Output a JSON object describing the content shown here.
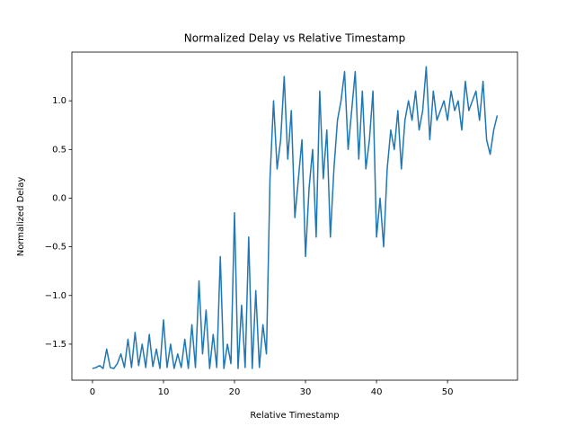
{
  "chart_data": {
    "type": "line",
    "title": "Normalized Delay vs Relative Timestamp",
    "x_label": "Relative Timestamp",
    "y_label": "Normalized Delay",
    "xlim": [
      -2.9,
      59.85
    ],
    "ylim": [
      -1.87,
      1.5
    ],
    "xticks": [
      0,
      10,
      20,
      30,
      40,
      50
    ],
    "yticks": [
      {
        "value": -1.5,
        "label": "−1.5"
      },
      {
        "value": -1.0,
        "label": "−1.0"
      },
      {
        "value": -0.5,
        "label": "−0.5"
      },
      {
        "value": 0,
        "label": "0.0"
      },
      0.5,
      {
        "value": 1.0,
        "label": "1.0"
      }
    ],
    "grid": false,
    "x": [
      0,
      0.5,
      1,
      1.5,
      2,
      2.5,
      3,
      3.5,
      4,
      4.5,
      5,
      5.5,
      6,
      6.5,
      7,
      7.5,
      8,
      8.5,
      9,
      9.5,
      10,
      10.5,
      11,
      11.5,
      12,
      12.5,
      13,
      13.5,
      14,
      14.5,
      15,
      15.5,
      16,
      16.5,
      17,
      17.5,
      18,
      18.5,
      19,
      19.5,
      20,
      20.5,
      21,
      21.5,
      22,
      22.5,
      23,
      23.5,
      24,
      24.5,
      25,
      25.5,
      26,
      26.5,
      27,
      27.5,
      28,
      28.5,
      29,
      29.5,
      30,
      30.5,
      31,
      31.5,
      32,
      32.5,
      33,
      33.5,
      34,
      34.5,
      35,
      35.5,
      36,
      36.5,
      37,
      37.5,
      38,
      38.5,
      39,
      39.5,
      40,
      40.5,
      41,
      41.5,
      42,
      42.5,
      43,
      43.5,
      44,
      44.5,
      45,
      45.5,
      46,
      46.5,
      47,
      47.5,
      48,
      48.5,
      49,
      49.5,
      50,
      50.5,
      51,
      51.5,
      52,
      52.5,
      53,
      53.5,
      54,
      54.5,
      55,
      55.5,
      56,
      56.5,
      57
    ],
    "series": [
      {
        "color": "#1f77b4",
        "values": [
          -1.75,
          -1.74,
          -1.72,
          -1.75,
          -1.55,
          -1.74,
          -1.75,
          -1.7,
          -1.6,
          -1.74,
          -1.45,
          -1.74,
          -1.38,
          -1.72,
          -1.5,
          -1.74,
          -1.4,
          -1.73,
          -1.55,
          -1.75,
          -1.25,
          -1.74,
          -1.5,
          -1.75,
          -1.6,
          -1.74,
          -1.45,
          -1.75,
          -1.3,
          -1.74,
          -0.85,
          -1.6,
          -1.15,
          -1.75,
          -1.4,
          -1.74,
          -0.6,
          -1.75,
          -1.5,
          -1.7,
          -0.15,
          -1.75,
          -1.1,
          -1.74,
          -0.4,
          -1.75,
          -0.95,
          -1.74,
          -1.3,
          -1.6,
          0.2,
          1.0,
          0.3,
          0.6,
          1.25,
          0.4,
          0.9,
          -0.2,
          0.2,
          0.6,
          -0.6,
          0.1,
          0.5,
          -0.4,
          1.1,
          0.2,
          0.7,
          -0.4,
          0.3,
          0.8,
          1.0,
          1.3,
          0.5,
          0.9,
          1.3,
          0.4,
          1.1,
          0.3,
          0.6,
          1.1,
          -0.4,
          0.0,
          -0.5,
          0.3,
          0.7,
          0.5,
          0.9,
          0.3,
          0.8,
          1.0,
          0.8,
          1.1,
          0.7,
          0.9,
          1.35,
          0.6,
          1.1,
          0.8,
          0.9,
          1.0,
          0.8,
          1.1,
          0.9,
          1.0,
          0.7,
          1.2,
          0.9,
          1.0,
          1.1,
          0.8,
          1.2,
          0.6,
          0.45,
          0.7,
          0.85
        ]
      }
    ]
  }
}
